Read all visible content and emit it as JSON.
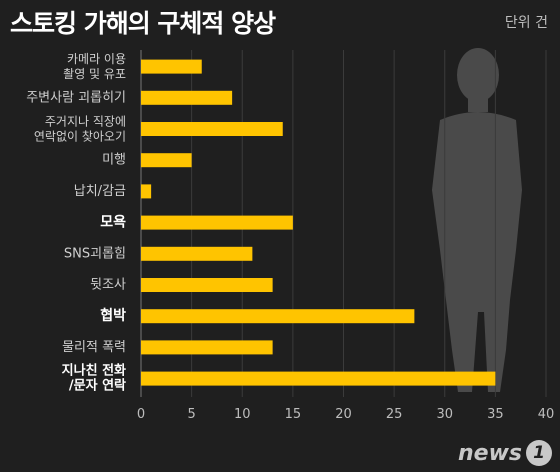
{
  "title": "스토킹 가해의 구체적 양상",
  "unit_label": "단위 건",
  "brand": {
    "text": "news",
    "mark": "1"
  },
  "chart_data": {
    "type": "bar",
    "orientation": "horizontal",
    "title": "스토킹 가해의 구체적 양상",
    "categories": [
      [
        "카메라 이용",
        "촬영 및 유포"
      ],
      [
        "주변사람 괴롭히기"
      ],
      [
        "주거지나 직장에",
        "연락없이 찾아오기"
      ],
      [
        "미행"
      ],
      [
        "납치/감금"
      ],
      [
        "모욕"
      ],
      [
        "SNS괴롭힘"
      ],
      [
        "뒷조사"
      ],
      [
        "협박"
      ],
      [
        "물리적 폭력"
      ],
      [
        "지나친 전화",
        "/문자 연락"
      ]
    ],
    "emphasized": [
      false,
      false,
      false,
      false,
      false,
      true,
      false,
      false,
      true,
      false,
      true
    ],
    "values": [
      6,
      9,
      14,
      5,
      1,
      15,
      11,
      13,
      27,
      13,
      35
    ],
    "xlim": [
      0,
      40
    ],
    "xticks": [
      0,
      5,
      10,
      15,
      20,
      25,
      30,
      35,
      40
    ],
    "grid": true,
    "bar_color": "#ffc400"
  }
}
